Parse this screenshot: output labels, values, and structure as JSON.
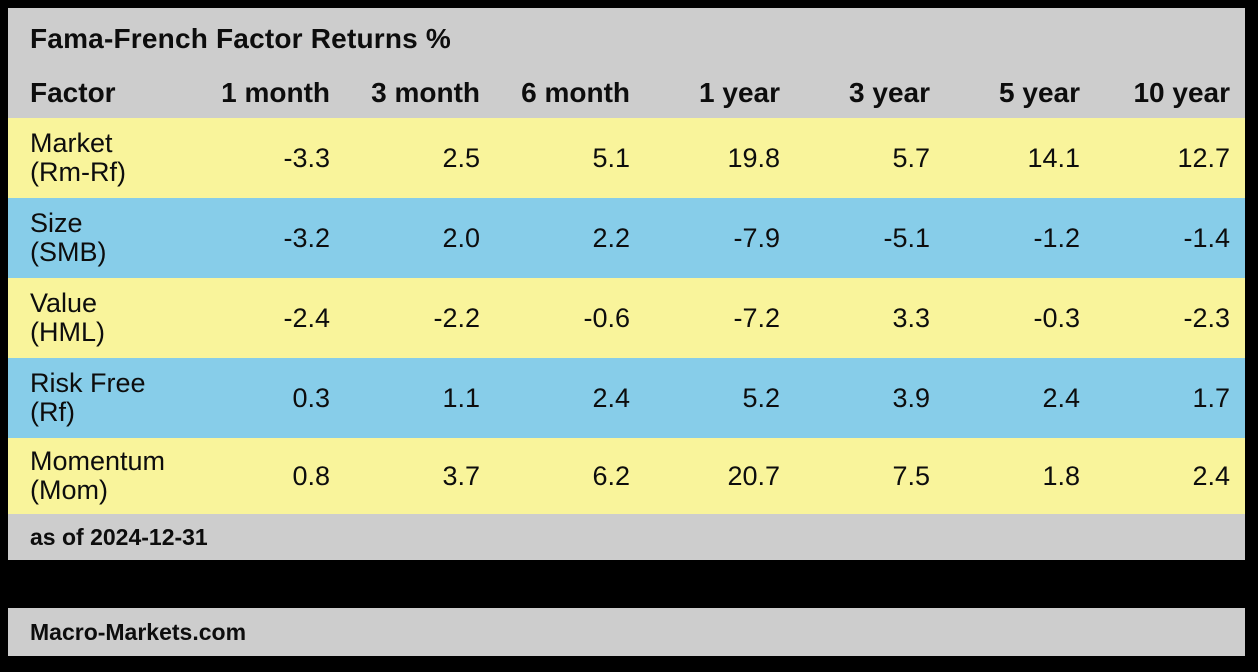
{
  "chart_data": {
    "type": "table",
    "title": "Fama-French Factor Returns %",
    "columns": [
      "Factor",
      "1 month",
      "3 month",
      "6 month",
      "1 year",
      "3 year",
      "5 year",
      "10 year"
    ],
    "rows": [
      {
        "factor": "Market",
        "code": "(Rm-Rf)",
        "values": [
          "-3.3",
          "2.5",
          "5.1",
          "19.8",
          "5.7",
          "14.1",
          "12.7"
        ]
      },
      {
        "factor": "Size",
        "code": "(SMB)",
        "values": [
          "-3.2",
          "2.0",
          "2.2",
          "-7.9",
          "-5.1",
          "-1.2",
          "-1.4"
        ]
      },
      {
        "factor": "Value",
        "code": "(HML)",
        "values": [
          "-2.4",
          "-2.2",
          "-0.6",
          "-7.2",
          "3.3",
          "-0.3",
          "-2.3"
        ]
      },
      {
        "factor": "Risk Free",
        "code": "(Rf)",
        "values": [
          "0.3",
          "1.1",
          "2.4",
          "5.2",
          "3.9",
          "2.4",
          "1.7"
        ]
      },
      {
        "factor": "Momentum",
        "code": "(Mom)",
        "values": [
          "0.8",
          "3.7",
          "6.2",
          "20.7",
          "7.5",
          "1.8",
          "2.4"
        ]
      }
    ],
    "as_of": "as of 2024-12-31",
    "source": "Macro-Markets.com",
    "layout": {
      "row_stripe_pattern": [
        "yellow",
        "blue",
        "yellow",
        "blue",
        "yellow"
      ],
      "values_alignment": "right"
    }
  },
  "colors": {
    "band_gray": "#CDCDCD",
    "row_yellow": "#F9F49B",
    "row_blue": "#87CDE9",
    "background": "#000000",
    "text": "#0D0D0D"
  }
}
